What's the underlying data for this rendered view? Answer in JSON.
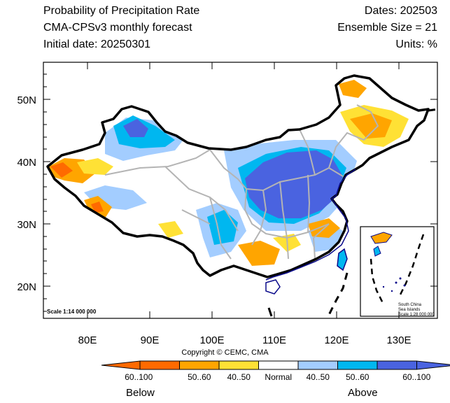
{
  "header": {
    "title": "Probability of Precipitation Rate",
    "subtitle": "CMA-CPSv3 monthly forecast",
    "initial_date": "Initial date: 20250301",
    "dates": "Dates: 202503",
    "ensemble": "Ensemble Size = 21",
    "units": "Units: %"
  },
  "axes": {
    "lat_labels": [
      "50N",
      "40N",
      "30N",
      "20N"
    ],
    "lon_labels": [
      "80E",
      "90E",
      "100E",
      "110E",
      "120E",
      "130E"
    ]
  },
  "map": {
    "scale_main": "Scale 1:14 000 000",
    "inset_line1": "South China",
    "inset_line2": "Sea Islands",
    "inset_line3": "Scale 1:28 000 000"
  },
  "copyright": "Copyright © CEMC, CMA",
  "legend": {
    "bins": [
      {
        "label": "60..100",
        "color": "#ff6a00",
        "side": "below"
      },
      {
        "label": "50..60",
        "color": "#ffa500",
        "side": "below"
      },
      {
        "label": "40..50",
        "color": "#ffe135",
        "side": "below"
      },
      {
        "label": "Normal",
        "color": "#ffffff",
        "side": "normal"
      },
      {
        "label": "40..50",
        "color": "#a3cdff",
        "side": "above"
      },
      {
        "label": "50..60",
        "color": "#00b7f0",
        "side": "above"
      },
      {
        "label": "60..100",
        "color": "#4a63e0",
        "side": "above"
      }
    ],
    "below_label": "Below",
    "above_label": "Above"
  },
  "colors": {
    "border": "#000000",
    "province": "#b4b4b4",
    "coast": "#0a0a8a"
  }
}
